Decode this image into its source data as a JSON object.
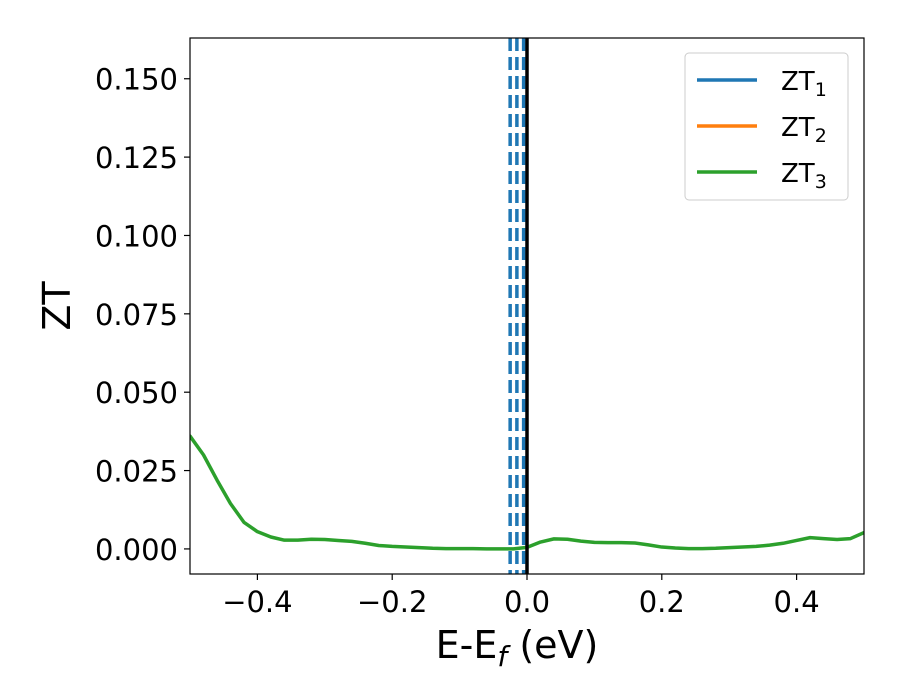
{
  "chart_data": {
    "type": "line",
    "xlabel": "E-E",
    "xlabel_sub": "f",
    "xlabel_unit": " (eV)",
    "ylabel": "ZT",
    "xlim": [
      -0.5,
      0.5
    ],
    "ylim": [
      -0.008,
      0.163
    ],
    "xticks": [
      -0.4,
      -0.2,
      0.0,
      0.2,
      0.4
    ],
    "xtick_labels": [
      "−0.4",
      "−0.2",
      "0.0",
      "0.2",
      "0.4"
    ],
    "yticks": [
      0.0,
      0.025,
      0.05,
      0.075,
      0.1,
      0.125,
      0.15
    ],
    "ytick_labels": [
      "0.000",
      "0.025",
      "0.050",
      "0.075",
      "0.100",
      "0.125",
      "0.150"
    ],
    "legend_position": "top-right",
    "series": [
      {
        "name": "ZT",
        "sub": "1",
        "color": "#1f77b4",
        "x": [],
        "y": []
      },
      {
        "name": "ZT",
        "sub": "2",
        "color": "#ff7f0e",
        "x": [],
        "y": []
      },
      {
        "name": "ZT",
        "sub": "3",
        "color": "#2ca02c",
        "x": [
          -0.5,
          -0.48,
          -0.46,
          -0.44,
          -0.42,
          -0.4,
          -0.38,
          -0.36,
          -0.34,
          -0.32,
          -0.3,
          -0.28,
          -0.26,
          -0.24,
          -0.22,
          -0.2,
          -0.18,
          -0.16,
          -0.14,
          -0.12,
          -0.1,
          -0.08,
          -0.06,
          -0.04,
          -0.02,
          0.0,
          0.02,
          0.04,
          0.06,
          0.08,
          0.1,
          0.12,
          0.14,
          0.16,
          0.18,
          0.2,
          0.22,
          0.24,
          0.26,
          0.28,
          0.3,
          0.32,
          0.34,
          0.36,
          0.38,
          0.4,
          0.42,
          0.44,
          0.46,
          0.48,
          0.5
        ],
        "y": [
          0.036,
          0.03,
          0.022,
          0.0145,
          0.0085,
          0.0055,
          0.0038,
          0.0028,
          0.0028,
          0.0031,
          0.003,
          0.0027,
          0.0024,
          0.0018,
          0.0011,
          0.0008,
          0.0006,
          0.0004,
          0.0002,
          0.0001,
          0.0001,
          0.0001,
          0.0,
          0.0,
          0.0,
          0.0005,
          0.0022,
          0.0032,
          0.0031,
          0.0025,
          0.0021,
          0.002,
          0.002,
          0.0019,
          0.0013,
          0.0006,
          0.0003,
          0.0001,
          0.0001,
          0.0002,
          0.0004,
          0.0006,
          0.0008,
          0.0012,
          0.0018,
          0.0027,
          0.0036,
          0.0033,
          0.003,
          0.0033,
          0.0052
        ]
      }
    ],
    "vlines": [
      {
        "x": -0.025,
        "color": "#1f77b4",
        "style": "dashed"
      },
      {
        "x": -0.015,
        "color": "#1f77b4",
        "style": "dashed"
      },
      {
        "x": -0.005,
        "color": "#1f77b4",
        "style": "dashed"
      },
      {
        "x": 0.0,
        "color": "#000000",
        "style": "solid"
      }
    ]
  }
}
